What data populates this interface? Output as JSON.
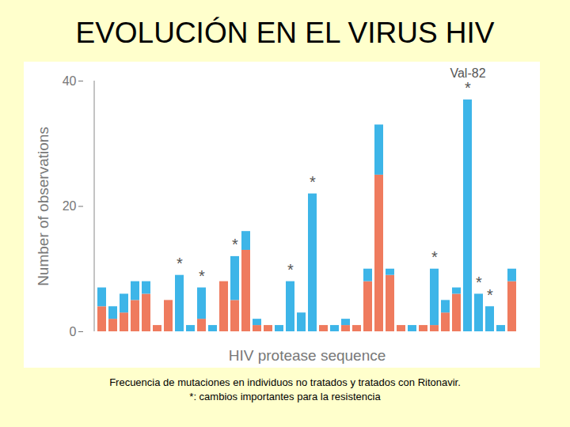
{
  "chart_data": {
    "type": "bar",
    "title": "EVOLUCIÓN EN EL VIRUS HIV",
    "x_label": "HIV protease sequence",
    "y_label": "Number of observations",
    "caption": [
      "Frecuencia de mutaciones en individuos no tratados y tratados con Ritonavir.",
      "*: cambios importantes para la resistencia"
    ],
    "categories": [
      null,
      null,
      null,
      null,
      null,
      null,
      null,
      null,
      null,
      null,
      null,
      null,
      null,
      null,
      null,
      null,
      null,
      null,
      null,
      null,
      null,
      null,
      null,
      null,
      null,
      null,
      null,
      null,
      null,
      null,
      null,
      null,
      null,
      null,
      null,
      null,
      null,
      null
    ],
    "stacked": true,
    "tick_labels": "y",
    "series": [
      {
        "color": "#EF7B5E",
        "values": [
          4,
          2,
          3,
          5,
          6,
          1,
          5,
          0,
          0,
          2,
          0,
          8,
          5,
          13,
          1,
          1,
          0,
          0,
          0,
          0,
          1,
          0,
          1,
          1,
          8,
          25,
          9,
          1,
          0,
          1,
          1,
          3,
          6,
          0,
          0,
          0,
          0,
          8
        ]
      },
      {
        "color": "#3DB5E8",
        "values": [
          3,
          2,
          3,
          3,
          2,
          0,
          0,
          9,
          1,
          5,
          1,
          0,
          7,
          3,
          1,
          0,
          1,
          8,
          3,
          22,
          0,
          1,
          1,
          0,
          2,
          8,
          1,
          0,
          1,
          0,
          9,
          2,
          1,
          37,
          6,
          4,
          1,
          2
        ]
      }
    ],
    "annotations": [
      {
        "x": 7,
        "text": "*"
      },
      {
        "x": 9,
        "text": "*"
      },
      {
        "x": 12,
        "text": "*"
      },
      {
        "x": 17,
        "text": "*"
      },
      {
        "x": 19,
        "text": "*"
      },
      {
        "x": 30,
        "text": "*"
      },
      {
        "x": 33,
        "text": "*"
      },
      {
        "x": 33,
        "text": "Val-82"
      },
      {
        "x": 34,
        "text": "*"
      },
      {
        "x": 35,
        "text": "*"
      }
    ],
    "ylim": [
      0,
      40
    ],
    "yticks": [
      0,
      20,
      40
    ]
  }
}
